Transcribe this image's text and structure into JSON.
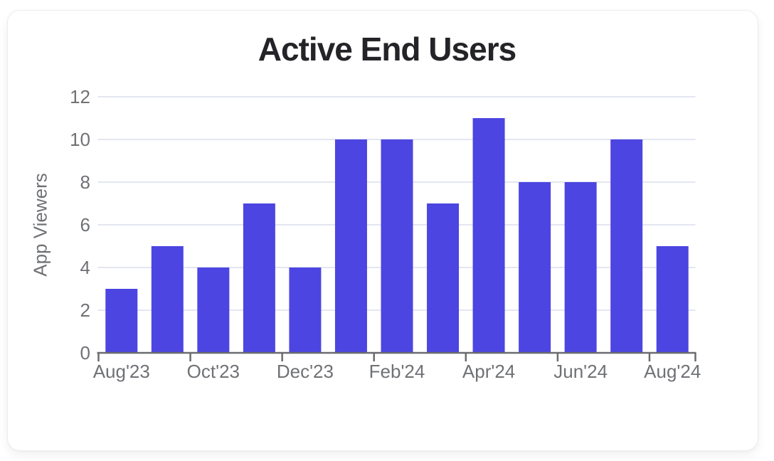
{
  "chart_data": {
    "type": "bar",
    "title": "Active End Users",
    "ylabel": "App Viewers",
    "xlabel": "",
    "values": [
      3,
      5,
      4,
      7,
      4,
      10,
      10,
      7,
      11,
      8,
      8,
      10,
      5
    ],
    "x_tick_labels": [
      "Aug'23",
      "Oct'23",
      "Dec'23",
      "Feb'24",
      "Apr'24",
      "Jun'24",
      "Aug'24"
    ],
    "x_tick_every": 2,
    "yticks": [
      0,
      2,
      4,
      6,
      8,
      10,
      12
    ],
    "ylim": [
      0,
      12
    ],
    "grid": true,
    "legend": "none",
    "bar_color": "#4C45E1",
    "grid_color": "#E4E7F2",
    "axis_color": "#6A6B6F",
    "tick_label_color": "#6F7175",
    "title_color": "#242428"
  }
}
